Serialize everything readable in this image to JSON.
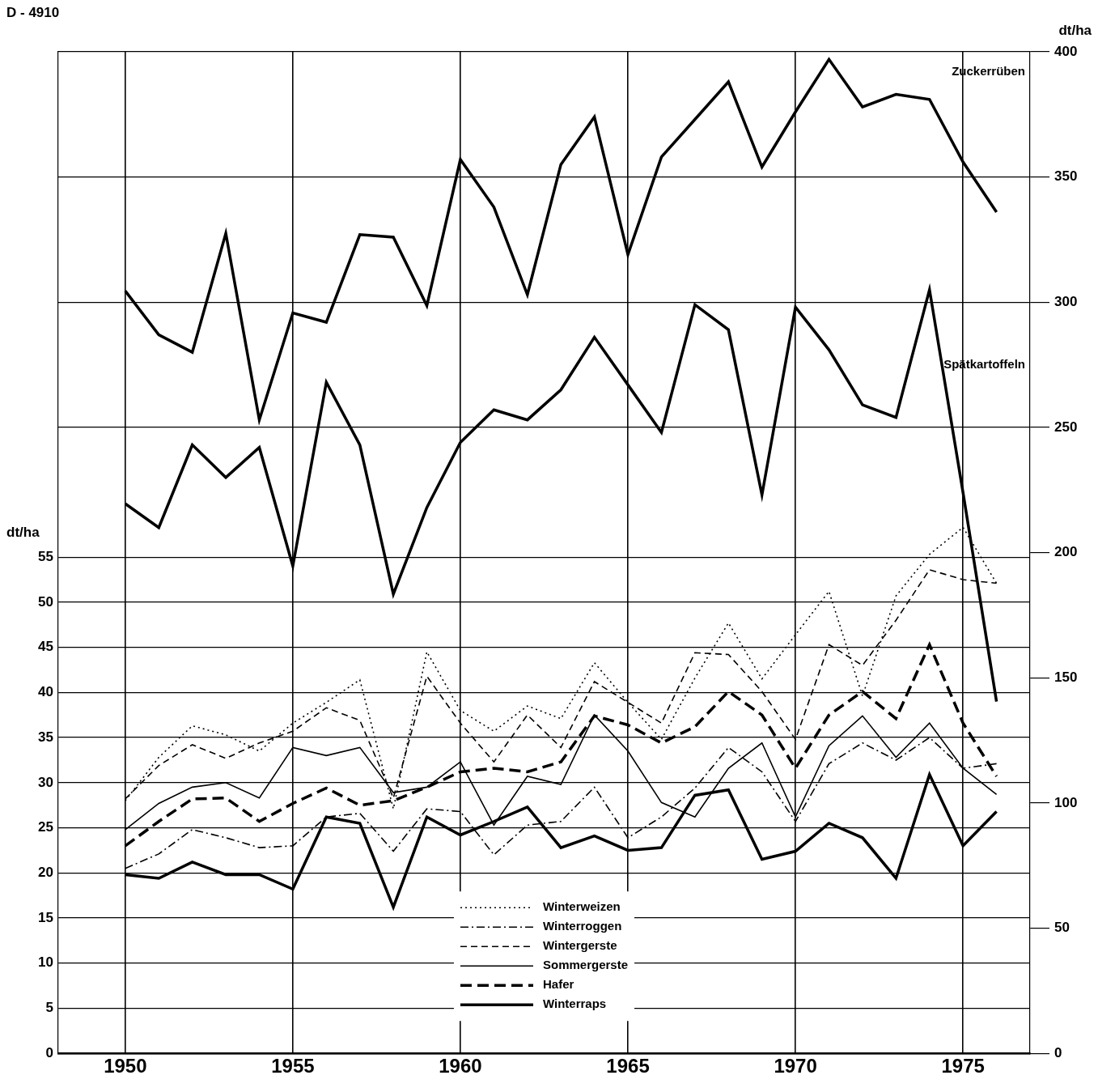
{
  "chart_data": {
    "type": "line",
    "title": "D - 4910",
    "y_label": "dt/ha",
    "y2_label": "dt/ha",
    "x": [
      1950,
      1951,
      1952,
      1953,
      1954,
      1955,
      1956,
      1957,
      1958,
      1959,
      1960,
      1961,
      1962,
      1963,
      1964,
      1965,
      1966,
      1967,
      1968,
      1969,
      1970,
      1971,
      1972,
      1973,
      1974,
      1975,
      1976
    ],
    "xlim": [
      1948,
      1977
    ],
    "xticks": [
      1950,
      1955,
      1960,
      1965,
      1970,
      1975
    ],
    "ylim": [
      0,
      111
    ],
    "yticks": [
      0,
      5,
      10,
      15,
      20,
      25,
      30,
      35,
      40,
      45,
      50,
      55
    ],
    "y2lim": [
      0,
      400
    ],
    "y2ticks": [
      0,
      50,
      100,
      150,
      200,
      250,
      300,
      350,
      400
    ],
    "grid": true,
    "legend": "lower center",
    "series": [
      {
        "name": "Zuckerrüben",
        "color": "#000000",
        "line_style": "heavy solid",
        "axis": "y2",
        "values": [
          304.5,
          287,
          280,
          327.5,
          253,
          295.7,
          292,
          327,
          326,
          298.6,
          357,
          338,
          303,
          355,
          374,
          319,
          358,
          373,
          388,
          354,
          376,
          397,
          378,
          383,
          381,
          356,
          336
        ]
      },
      {
        "name": "Spätkartoffeln",
        "color": "#000000",
        "line_style": "heavy solid",
        "axis": "y2",
        "values": [
          219.5,
          210,
          243,
          230,
          242,
          194.6,
          268,
          243,
          183.4,
          218,
          244,
          257,
          253,
          265,
          286,
          267,
          248,
          299,
          289,
          223,
          298,
          281,
          259,
          254,
          305,
          224,
          140.5
        ]
      },
      {
        "name": "Winterweizen",
        "color": "#000000",
        "line_style": "dotted",
        "values": [
          28,
          32.8,
          36.3,
          35.3,
          33.5,
          36.6,
          38.9,
          41.4,
          27.1,
          44.5,
          38,
          35.7,
          38.5,
          37.1,
          43.3,
          38.9,
          34.8,
          41.6,
          47.7,
          41.5,
          46.4,
          51.2,
          39.6,
          50.7,
          55.3,
          58.3,
          52.1
        ]
      },
      {
        "name": "Winterroggen",
        "color": "#000000",
        "line_style": "dashdot",
        "values": [
          20.5,
          22.1,
          24.8,
          23.9,
          22.8,
          23,
          26.2,
          26.6,
          22.4,
          27.1,
          26.8,
          22,
          25.3,
          25.7,
          29.5,
          23.9,
          26.2,
          29.4,
          33.9,
          31.2,
          25.7,
          32.1,
          34.4,
          32.5,
          35,
          31.6,
          32.1
        ]
      },
      {
        "name": "Wintergerste",
        "color": "#000000",
        "line_style": "dashed",
        "values": [
          28.2,
          31.9,
          34.2,
          32.7,
          34.4,
          35.7,
          38.3,
          36.9,
          28.3,
          41.8,
          36.6,
          32.3,
          37.5,
          33.9,
          41.2,
          38.9,
          36.6,
          44.4,
          44.2,
          40.1,
          34.8,
          45.3,
          43,
          48,
          53.6,
          52.5,
          52.1
        ]
      },
      {
        "name": "Sommergerste",
        "color": "#000000",
        "line_style": "solid",
        "values": [
          24.8,
          27.7,
          29.5,
          30,
          28.3,
          33.9,
          33,
          33.9,
          28.9,
          29.5,
          32.3,
          25.3,
          30.7,
          29.8,
          37.5,
          33.5,
          27.8,
          26.2,
          31.6,
          34.4,
          26.2,
          34.1,
          37.4,
          32.8,
          36.6,
          31.6,
          28.7
        ]
      },
      {
        "name": "Hafer",
        "color": "#000000",
        "line_style": "heavy dashed",
        "values": [
          23,
          25.7,
          28.2,
          28.3,
          25.7,
          27.7,
          29.4,
          27.5,
          28,
          29.5,
          31.2,
          31.6,
          31.2,
          32.3,
          37.4,
          36.4,
          34.4,
          36.2,
          40.1,
          37.5,
          31.6,
          37.5,
          40.1,
          37.1,
          45.3,
          36.6,
          30.7
        ]
      },
      {
        "name": "Winterraps",
        "color": "#000000",
        "line_style": "heavy solid",
        "values": [
          19.8,
          19.4,
          21.2,
          19.8,
          19.8,
          18.2,
          26.2,
          25.5,
          16.2,
          26.2,
          24.2,
          25.7,
          27.3,
          22.8,
          24.1,
          22.5,
          22.8,
          28.6,
          29.2,
          21.5,
          22.4,
          25.5,
          23.9,
          19.4,
          30.9,
          23,
          26.8
        ]
      }
    ]
  }
}
